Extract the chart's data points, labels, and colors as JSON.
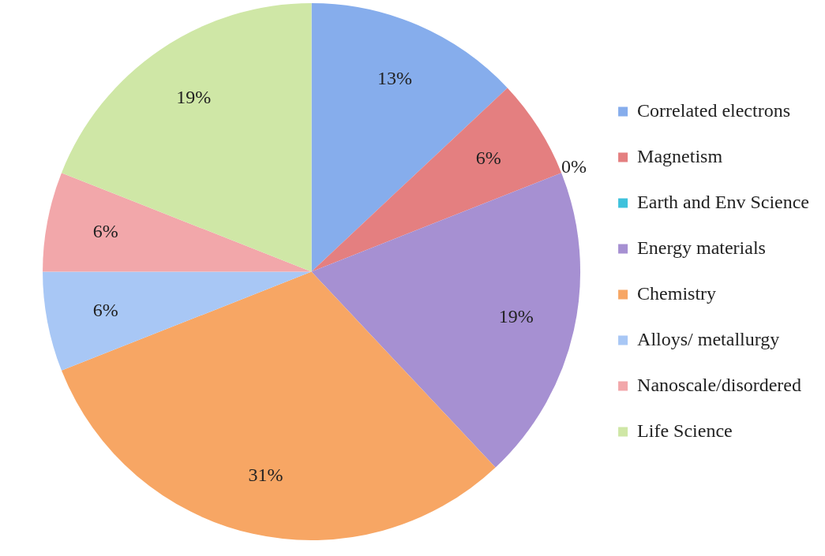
{
  "chart_data": {
    "type": "pie",
    "categories": [
      "Correlated electrons",
      "Magnetism",
      "Earth and Env Science",
      "Energy materials",
      "Chemistry",
      "Alloys/ metallurgy",
      "Nanoscale/disordered",
      "Life Science"
    ],
    "values": [
      13,
      6,
      0,
      19,
      31,
      6,
      6,
      19
    ],
    "value_labels": [
      "13%",
      "6%",
      "0%",
      "19%",
      "31%",
      "6%",
      "6%",
      "19%"
    ],
    "colors": [
      "#86adec",
      "#e47f80",
      "#3fc2dc",
      "#a690d2",
      "#f7a664",
      "#a8c7f5",
      "#f2a7aa",
      "#cfe7a6"
    ],
    "legend": "right"
  }
}
